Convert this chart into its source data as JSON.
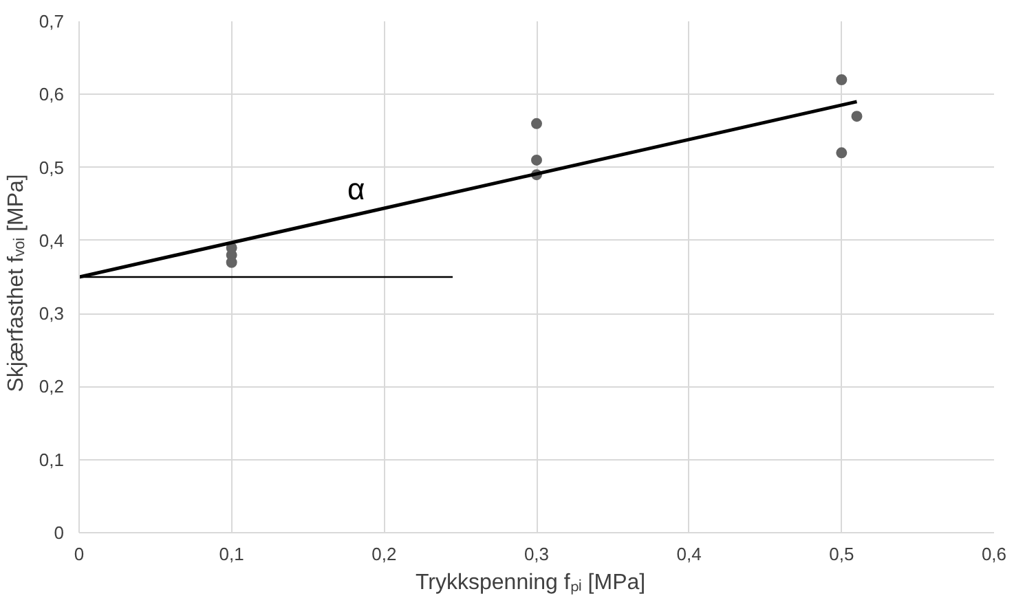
{
  "chart_data": {
    "type": "scatter",
    "xlabel": "Trykkspenning fₚᵢ   [MPa]",
    "ylabel": "Skjærfasthet fᵥₒᵢ   [MPa]",
    "series": [
      {
        "color": "#646464",
        "marker": "circle",
        "x": [
          0.1,
          0.1,
          0.1,
          0.3,
          0.3,
          0.3,
          0.5,
          0.5,
          0.51
        ],
        "values": [
          0.37,
          0.38,
          0.39,
          0.56,
          0.51,
          0.49,
          0.62,
          0.52,
          0.57
        ]
      },
      {
        "type": "line",
        "marker": "none",
        "color": "#000000",
        "x": [
          0,
          0.51
        ],
        "values": [
          0.35,
          0.59
        ]
      },
      {
        "type": "line",
        "marker": "none",
        "color": "#000000",
        "x": [
          0,
          0.245
        ],
        "values": [
          0.35,
          0.35
        ]
      }
    ],
    "annotations": [
      "α"
    ],
    "xlim": [
      0,
      0.6
    ],
    "ylim": [
      0,
      0.7
    ],
    "xticks": [
      {
        "value": 0,
        "label": "0"
      },
      {
        "value": 0.1,
        "label": "0,1"
      },
      {
        "value": 0.2,
        "label": "0,2"
      },
      {
        "value": 0.3,
        "label": "0,3"
      },
      {
        "value": 0.4,
        "label": "0,4"
      },
      {
        "value": 0.5,
        "label": "0,5"
      },
      {
        "value": 0.6,
        "label": "0,6"
      }
    ],
    "yticks": [
      {
        "value": 0,
        "label": "0"
      },
      {
        "value": 0.1,
        "label": "0,1"
      },
      {
        "value": 0.2,
        "label": "0,2"
      },
      {
        "value": 0.3,
        "label": "0,3"
      },
      {
        "value": 0.4,
        "label": "0,4"
      },
      {
        "value": 0.5,
        "label": "0,5"
      },
      {
        "value": 0.6,
        "label": "0,6"
      },
      {
        "value": 0.7,
        "label": "0,7"
      }
    ],
    "grid": true
  }
}
